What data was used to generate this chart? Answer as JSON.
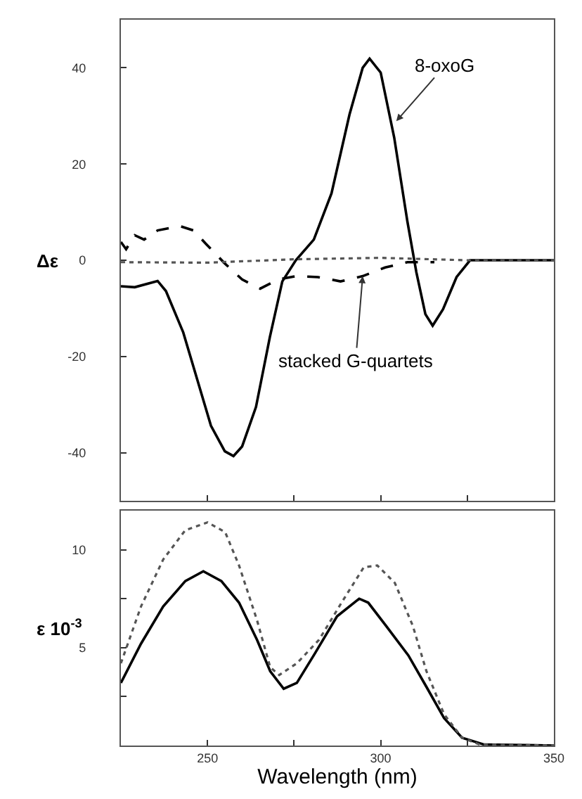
{
  "chart_data": [
    {
      "type": "line",
      "ylabel": "Δε",
      "xlim": [
        225,
        350
      ],
      "ylim": [
        -50,
        50
      ],
      "xticks": [
        {
          "value": 250,
          "label": null
        },
        {
          "value": 275,
          "label": null
        },
        {
          "value": 300,
          "label": null
        },
        {
          "value": 325,
          "label": null
        }
      ],
      "yticks": [
        -40,
        -20,
        0,
        20,
        40
      ],
      "tick_labels": "y",
      "series": [
        {
          "color": "#000000",
          "line_style": "solid",
          "x": [
            225,
            229,
            235.6,
            238,
            243,
            247,
            251,
            255,
            257.5,
            260,
            264,
            268,
            271.6,
            275.5,
            280.7,
            285.8,
            291,
            294.8,
            296.8,
            300,
            303.9,
            307.7,
            310.3,
            312.9,
            315,
            318,
            321.9,
            325.8,
            350
          ],
          "values": [
            -5.4,
            -5.6,
            -4.3,
            -6.4,
            -15,
            -24.7,
            -34.4,
            -39.7,
            -40.7,
            -38.7,
            -30.5,
            -16,
            -4.4,
            0,
            4.3,
            13.9,
            30.3,
            40,
            41.9,
            39,
            25.5,
            8.1,
            -2.5,
            -11.2,
            -13.6,
            -10.2,
            -3.5,
            0,
            0
          ]
        },
        {
          "color": "#000000",
          "line_style": "dashed",
          "x": [
            225,
            226.5,
            229,
            231.7,
            235.6,
            242,
            245.9,
            249.7,
            254.9,
            260,
            265.2,
            270.4,
            275.5,
            281.9,
            288.4,
            294.8,
            301.3,
            307.7,
            315.5
          ],
          "values": [
            3.8,
            2.3,
            5.2,
            4.3,
            6.2,
            7.1,
            6.2,
            3.3,
            -0.6,
            -4,
            -5.9,
            -4,
            -3.3,
            -3.5,
            -4.4,
            -3.3,
            -1.5,
            -0.4,
            -0.4
          ]
        },
        {
          "color": "#555555",
          "line_style": "dotted",
          "x": [
            225,
            250,
            275,
            300,
            325,
            350
          ],
          "values": [
            -0.4,
            -0.5,
            0.2,
            0.5,
            0,
            0
          ]
        }
      ],
      "annotations": [
        {
          "text": "8-oxoG",
          "x": 304.5,
          "y": 28.9
        },
        {
          "text": "stacked G-quartets",
          "x": 294.8,
          "y": -3.3
        }
      ]
    },
    {
      "type": "line",
      "ylabel": "ε 10$^{-3}$",
      "xlabel": "Wavelength (nm)",
      "xlim": [
        225,
        350
      ],
      "ylim": [
        0,
        12
      ],
      "xticks": [
        250,
        {
          "value": 275,
          "label": null
        },
        300,
        {
          "value": 325,
          "label": null
        },
        350
      ],
      "yticks": [
        {
          "value": 2.5,
          "label": null
        },
        5,
        {
          "value": 7.5,
          "label": null
        },
        10
      ],
      "series": [
        {
          "color": "#000000",
          "line_style": "solid",
          "x": [
            225,
            230.8,
            237.2,
            243.6,
            248.8,
            254,
            259.1,
            264.3,
            268.1,
            272,
            275.8,
            281,
            287.4,
            293.8,
            296.4,
            301.6,
            308,
            313.2,
            318.3,
            323.5,
            329.9,
            350
          ],
          "values": [
            3.2,
            5.2,
            7.1,
            8.4,
            8.9,
            8.4,
            7.3,
            5.4,
            3.8,
            2.9,
            3.2,
            4.7,
            6.6,
            7.5,
            7.3,
            6.1,
            4.6,
            3.0,
            1.4,
            0.4,
            0.05,
            0
          ]
        },
        {
          "color": "#555555",
          "line_style": "dotted",
          "x": [
            225,
            230.8,
            237.2,
            243.6,
            250,
            255.1,
            259.1,
            264.3,
            268.1,
            270.7,
            275.8,
            282.2,
            288.7,
            295.1,
            299,
            304.1,
            309.3,
            313.2,
            318.3,
            323.5,
            328.6,
            350
          ],
          "values": [
            4.2,
            7.1,
            9.5,
            11.0,
            11.4,
            10.9,
            9.2,
            6.4,
            4.0,
            3.6,
            4.2,
            5.4,
            7.3,
            9.1,
            9.2,
            8.3,
            6.1,
            3.8,
            1.6,
            0.4,
            0.05,
            0
          ]
        }
      ]
    }
  ]
}
